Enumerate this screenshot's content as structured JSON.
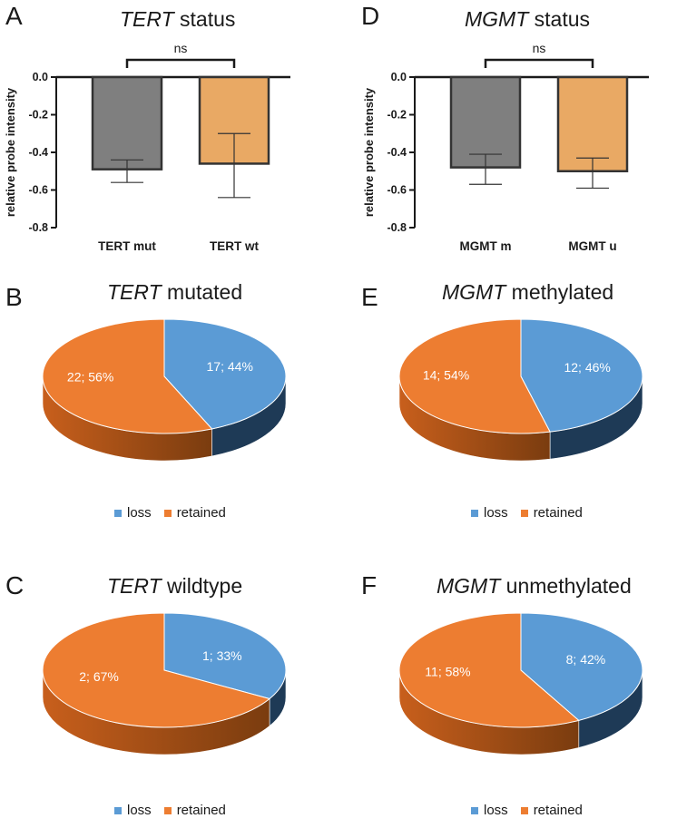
{
  "colors": {
    "loss": "#5b9bd5",
    "loss_side": "#1e3a56",
    "retained": "#ed7d31",
    "retained_side": "#7a3c0f",
    "bar_gray": "#7f7f7f",
    "bar_orange": "#e9a964"
  },
  "legend": {
    "loss": "loss",
    "retained": "retained"
  },
  "chart_data": [
    {
      "panel": "A",
      "type": "bar",
      "title_italic": "TERT",
      "title_rest": "status",
      "ylabel": "relative probe intensity",
      "categories": [
        "TERT mut",
        "TERT wt"
      ],
      "values": [
        -0.49,
        -0.46
      ],
      "errors": [
        [
          -0.56,
          -0.44
        ],
        [
          -0.64,
          -0.3
        ]
      ],
      "ylim": [
        -0.8,
        0.0
      ],
      "yticks": [
        "0.0",
        "-0.2",
        "-0.4",
        "-0.6",
        "-0.8"
      ],
      "significance": "ns"
    },
    {
      "panel": "D",
      "type": "bar",
      "title_italic": "MGMT",
      "title_rest": "status",
      "ylabel": "relative probe intensity",
      "categories": [
        "MGMT m",
        "MGMT u"
      ],
      "values": [
        -0.48,
        -0.5
      ],
      "errors": [
        [
          -0.57,
          -0.41
        ],
        [
          -0.59,
          -0.43
        ]
      ],
      "ylim": [
        -0.8,
        0.0
      ],
      "yticks": [
        "0.0",
        "-0.2",
        "-0.4",
        "-0.6",
        "-0.8"
      ],
      "significance": "ns"
    },
    {
      "panel": "B",
      "type": "pie",
      "title_italic": "TERT",
      "title_rest": "mutated",
      "slices": [
        {
          "name": "loss",
          "value": 17,
          "percent": 44,
          "label": "17; 44%"
        },
        {
          "name": "retained",
          "value": 22,
          "percent": 56,
          "label": "22; 56%"
        }
      ]
    },
    {
      "panel": "E",
      "type": "pie",
      "title_italic": "MGMT",
      "title_rest": "methylated",
      "slices": [
        {
          "name": "loss",
          "value": 12,
          "percent": 46,
          "label": "12; 46%"
        },
        {
          "name": "retained",
          "value": 14,
          "percent": 54,
          "label": "14; 54%"
        }
      ]
    },
    {
      "panel": "C",
      "type": "pie",
      "title_italic": "TERT",
      "title_rest": "wildtype",
      "slices": [
        {
          "name": "loss",
          "value": 1,
          "percent": 33,
          "label": "1; 33%"
        },
        {
          "name": "retained",
          "value": 2,
          "percent": 67,
          "label": "2; 67%"
        }
      ]
    },
    {
      "panel": "F",
      "type": "pie",
      "title_italic": "MGMT",
      "title_rest": "unmethylated",
      "slices": [
        {
          "name": "loss",
          "value": 8,
          "percent": 42,
          "label": "8; 42%"
        },
        {
          "name": "retained",
          "value": 11,
          "percent": 58,
          "label": "11; 58%"
        }
      ]
    }
  ]
}
